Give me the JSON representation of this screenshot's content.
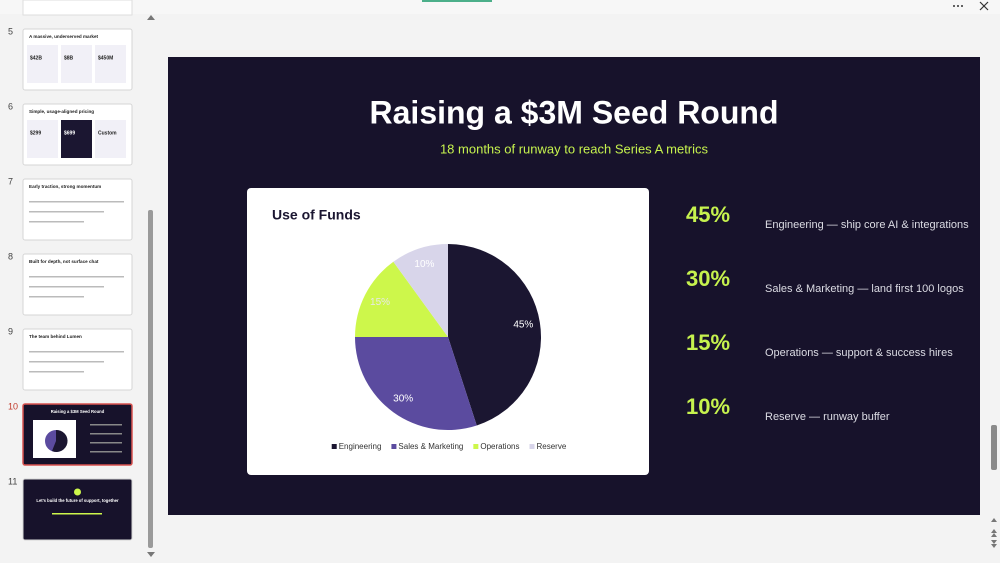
{
  "thumbnails": [
    {
      "number": "5",
      "title": "A massive, underserved market",
      "figures": [
        "$42B",
        "$8B",
        "$450M"
      ],
      "dark": false,
      "selected": false
    },
    {
      "number": "6",
      "title": "Simple, usage-aligned pricing",
      "figures": [
        "$299",
        "$699",
        "Custom"
      ],
      "dark": false,
      "selected": false
    },
    {
      "number": "7",
      "title": "Early traction, strong momentum",
      "figures": [],
      "dark": false,
      "selected": false
    },
    {
      "number": "8",
      "title": "Built for depth, not surface chat",
      "figures": [],
      "dark": false,
      "selected": false
    },
    {
      "number": "9",
      "title": "The team behind Lumen",
      "figures": [],
      "dark": false,
      "selected": false
    },
    {
      "number": "10",
      "title": "Raising a $3M Seed Round",
      "figures": [],
      "dark": true,
      "selected": true
    },
    {
      "number": "11",
      "title": "Let's build the future of support, together",
      "figures": [],
      "dark": true,
      "selected": false
    }
  ],
  "slide": {
    "title": "Raising a $3M Seed Round",
    "subtitle": "18 months of runway to reach Series A metrics",
    "items": [
      {
        "percent": "45%",
        "text": "Engineering — ship core AI & integrations"
      },
      {
        "percent": "30%",
        "text": "Sales & Marketing — land first 100 logos"
      },
      {
        "percent": "15%",
        "text": "Operations — support & success hires"
      },
      {
        "percent": "10%",
        "text": "Reserve — runway buffer"
      }
    ]
  },
  "chart_data": {
    "type": "pie",
    "title": "Use of Funds",
    "categories": [
      "Engineering",
      "Sales & Marketing",
      "Operations",
      "Reserve"
    ],
    "values": [
      45,
      30,
      15,
      10
    ],
    "value_labels": [
      "45%",
      "30%",
      "15%",
      "10%"
    ],
    "colors": [
      "#1b1631",
      "#5b4b9f",
      "#cdf74b",
      "#d8d5ea"
    ],
    "label_colors": [
      "#ffffff",
      "#ffffff",
      "#e8e8e8",
      "#ffffff"
    ]
  }
}
